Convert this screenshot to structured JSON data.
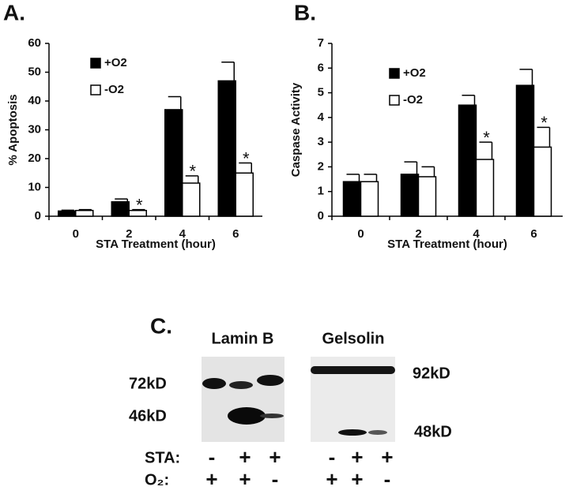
{
  "chart_data": [
    {
      "type": "bar",
      "panel": "A.",
      "ylabel": "% Apoptosis",
      "xlabel": "STA Treatment (hour)",
      "categories": [
        "0",
        "2",
        "4",
        "6"
      ],
      "series": [
        {
          "name": "+O2",
          "color": "#000000",
          "values": [
            1.8,
            5,
            37,
            47
          ],
          "errors": [
            0.3,
            1,
            4.5,
            6.5
          ]
        },
        {
          "name": "-O2",
          "color": "#ffffff",
          "values": [
            2,
            2,
            11.5,
            15
          ],
          "errors": [
            0.3,
            0.3,
            2.5,
            3.5
          ],
          "annotations": [
            null,
            "*",
            "*",
            "*"
          ]
        }
      ],
      "ylim": [
        0,
        60
      ],
      "yticks": [
        0,
        10,
        20,
        30,
        40,
        50,
        60
      ]
    },
    {
      "type": "bar",
      "panel": "B.",
      "ylabel": "Caspase Activity",
      "xlabel": "STA Treatment (hour)",
      "categories": [
        "0",
        "2",
        "4",
        "6"
      ],
      "series": [
        {
          "name": "+O2",
          "color": "#000000",
          "values": [
            1.4,
            1.7,
            4.5,
            5.3
          ],
          "errors": [
            0.3,
            0.5,
            0.4,
            0.65
          ]
        },
        {
          "name": "-O2",
          "color": "#ffffff",
          "values": [
            1.4,
            1.6,
            2.3,
            2.8
          ],
          "errors": [
            0.3,
            0.4,
            0.7,
            0.8
          ],
          "annotations": [
            null,
            null,
            "*",
            "*"
          ]
        }
      ],
      "ylim": [
        0,
        7
      ],
      "yticks": [
        0,
        1,
        2,
        3,
        4,
        5,
        6,
        7
      ]
    }
  ],
  "panel_c": {
    "label": "C.",
    "blots": [
      {
        "title": "Lamin B",
        "bands": [
          "72kD",
          "46kD"
        ]
      },
      {
        "title": "Gelsolin",
        "bands": [
          "92kD",
          "48kD"
        ]
      }
    ],
    "rows": [
      {
        "label": "STA:",
        "signs": [
          "-",
          "+",
          "+",
          "-",
          "+",
          "+"
        ]
      },
      {
        "label": "O₂:",
        "signs": [
          "+",
          "+",
          "-",
          "+",
          "+",
          "-"
        ]
      }
    ]
  }
}
